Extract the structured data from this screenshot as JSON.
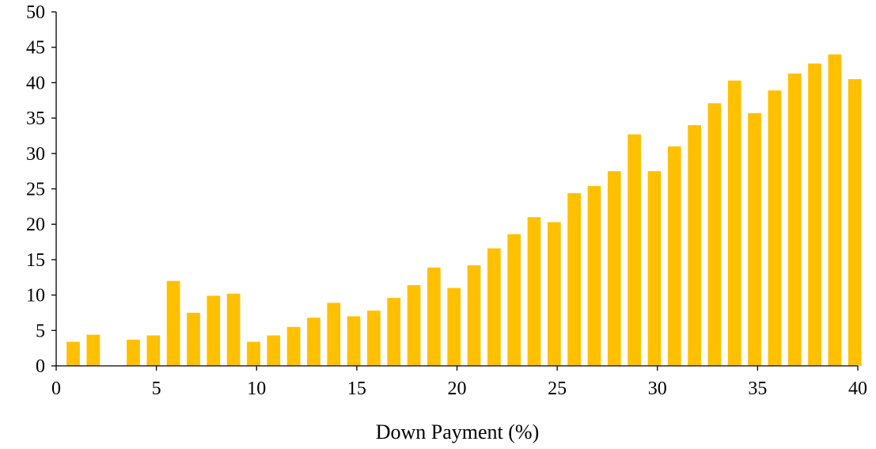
{
  "chart_data": {
    "type": "bar",
    "title": "",
    "xlabel": "Down Payment (%)",
    "ylabel": "",
    "xlim": [
      0,
      40
    ],
    "ylim": [
      0,
      50
    ],
    "x_ticks": [
      0,
      5,
      10,
      15,
      20,
      25,
      30,
      35,
      40
    ],
    "y_ticks": [
      0,
      5,
      10,
      15,
      20,
      25,
      30,
      35,
      40,
      45,
      50
    ],
    "grid": false,
    "legend": "none",
    "bar_color": "#FFC000",
    "x": [
      1,
      2,
      3,
      4,
      5,
      6,
      7,
      8,
      9,
      10,
      11,
      12,
      13,
      14,
      15,
      16,
      17,
      18,
      19,
      20,
      21,
      22,
      23,
      24,
      25,
      26,
      27,
      28,
      29,
      30,
      31,
      32,
      33,
      34,
      35,
      36,
      37,
      38,
      39,
      40
    ],
    "values": [
      3.4,
      4.4,
      0,
      3.7,
      4.3,
      12.0,
      7.5,
      9.9,
      10.2,
      3.4,
      4.3,
      5.5,
      6.8,
      8.9,
      7.0,
      7.8,
      9.6,
      11.4,
      13.9,
      11.0,
      14.2,
      16.6,
      18.6,
      21.0,
      20.3,
      24.4,
      25.4,
      27.5,
      32.7,
      27.5,
      31.0,
      34.0,
      37.1,
      40.3,
      35.7,
      38.9,
      41.3,
      42.7,
      44.0,
      40.5
    ]
  }
}
